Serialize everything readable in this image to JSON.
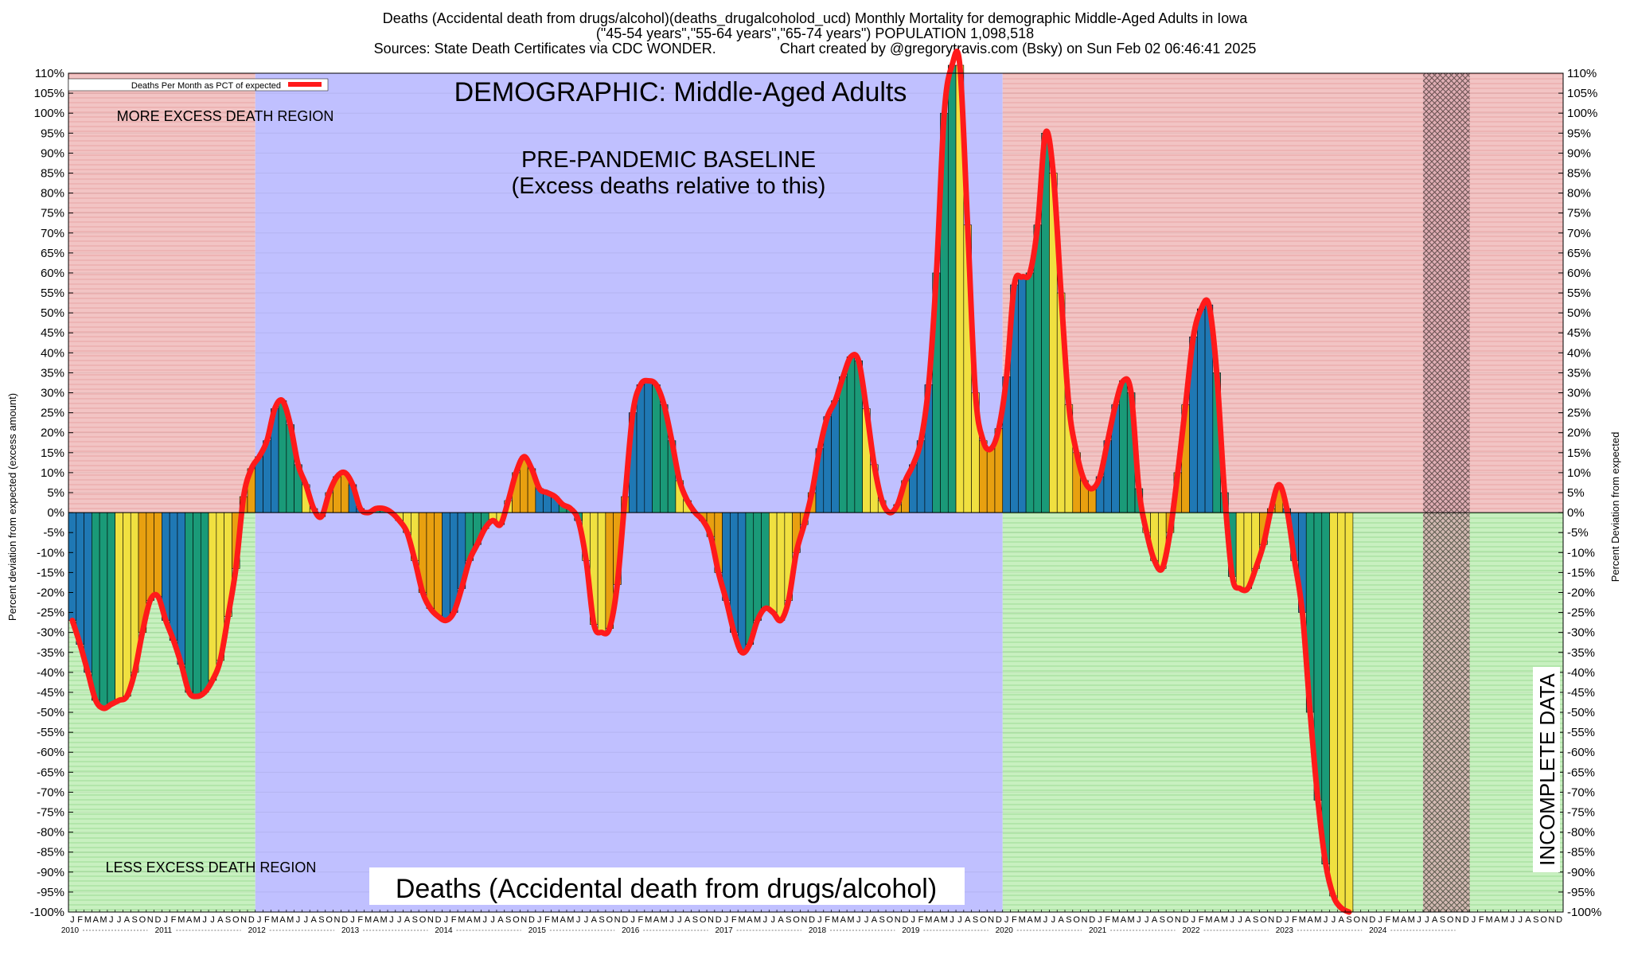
{
  "header": {
    "line1": "Deaths (Accidental death from drugs/alcohol)(deaths_drugalcoholod_ucd) Monthly Mortality for demographic Middle-Aged Adults in Iowa",
    "line2": "(\"45-54 years\",\"55-64 years\",\"65-74 years\") POPULATION 1,098,518",
    "line3": "Sources: State Death Certificates via CDC WONDER.                Chart created by @gregorytravis.com (Bsky) on Sun Feb 02 06:46:41 2025"
  },
  "chart_data": {
    "type": "bar",
    "title": "DEMOGRAPHIC: Middle-Aged Adults",
    "subtitle": "Deaths (Accidental death from drugs/alcohol)",
    "ylabel_left": "Percent deviation from expected (excess amount)",
    "ylabel_right": "Percent Deviation from expected",
    "legend": "Deaths Per Month as PCT of expected",
    "legend_position": "top-left",
    "ylim": [
      -100,
      110
    ],
    "ytick_step": 5,
    "ytick_suffix": "%",
    "grid": true,
    "x_start": "2010-01",
    "x_end": "2025-12",
    "years": [
      "2010",
      "2011",
      "2012",
      "2013",
      "2014",
      "2015",
      "2016",
      "2017",
      "2018",
      "2019",
      "2020",
      "2021",
      "2022",
      "2023",
      "2024"
    ],
    "month_letters": [
      "J",
      "F",
      "M",
      "A",
      "M",
      "J",
      "J",
      "A",
      "S",
      "O",
      "N",
      "D"
    ],
    "region_labels": {
      "more_excess": "MORE EXCESS DEATH REGION",
      "less_excess": "LESS EXCESS DEATH REGION",
      "baseline_title": "PRE-PANDEMIC BASELINE",
      "baseline_sub": "(Excess deaths relative to this)",
      "incomplete": "INCOMPLETE DATA"
    },
    "baseline_period": [
      "2012-01",
      "2019-12"
    ],
    "incomplete_period": [
      "2024-07",
      "2024-12"
    ],
    "line_color": "#ff1a1a",
    "bar_colors": [
      "#1f78b4",
      "#1a9a78",
      "#f0e040",
      "#e8a010"
    ],
    "values": [
      -27,
      -33,
      -40,
      -47,
      -49,
      -48,
      -47,
      -46,
      -40,
      -30,
      -22,
      -21,
      -27,
      -32,
      -38,
      -45,
      -46,
      -45,
      -42,
      -37,
      -26,
      -14,
      4,
      11,
      14,
      18,
      26,
      28,
      22,
      12,
      7,
      1,
      -1,
      5,
      9,
      10,
      7,
      1,
      0,
      1,
      1,
      0,
      -2,
      -5,
      -12,
      -20,
      -24,
      -26,
      -27,
      -25,
      -19,
      -12,
      -8,
      -4,
      -2,
      -3,
      3,
      10,
      14,
      11,
      6,
      5,
      4,
      2,
      1,
      -2,
      -12,
      -28,
      -30,
      -29,
      -18,
      4,
      25,
      32,
      33,
      32,
      27,
      18,
      8,
      3,
      0,
      -2,
      -6,
      -15,
      -22,
      -30,
      -35,
      -33,
      -27,
      -24,
      -25,
      -27,
      -22,
      -10,
      -3,
      5,
      16,
      24,
      28,
      34,
      39,
      38,
      26,
      12,
      3,
      0,
      2,
      8,
      12,
      18,
      32,
      60,
      100,
      112,
      112,
      72,
      30,
      18,
      16,
      21,
      34,
      57,
      59,
      60,
      72,
      95,
      85,
      55,
      27,
      15,
      8,
      6,
      9,
      18,
      27,
      33,
      30,
      6,
      -5,
      -12,
      -14,
      -5,
      10,
      27,
      44,
      51,
      52,
      35,
      5,
      -16,
      -19,
      -19,
      -14,
      -8,
      1,
      7,
      1,
      -12,
      -25,
      -50,
      -72,
      -88,
      -96,
      -99,
      -100
    ]
  }
}
